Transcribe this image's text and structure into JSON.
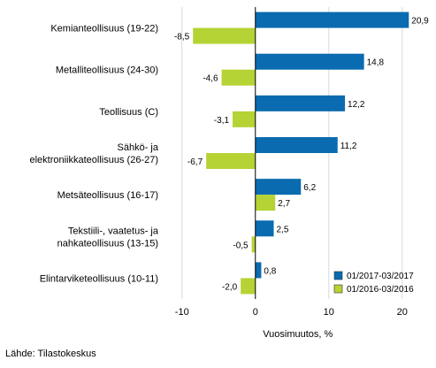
{
  "chart_data": {
    "type": "bar",
    "orientation": "horizontal",
    "categories": [
      [
        "Kemianteollisuus (19-22)"
      ],
      [
        "Metalliteollisuus (24-30)"
      ],
      [
        "Teollisuus (C)"
      ],
      [
        "Sähkö- ja",
        "elektroniikkateollisuus (26-27)"
      ],
      [
        "Metsäteollisuus (16-17)"
      ],
      [
        "Tekstiili-, vaatetus- ja",
        "nahkateollisuus (13-15)"
      ],
      [
        "Elintarviketeollisuus (10-11)"
      ]
    ],
    "series": [
      {
        "name": "01/2017-03/2017",
        "color": "#0a6bb0",
        "values": [
          20.9,
          14.8,
          12.2,
          11.2,
          6.2,
          2.5,
          0.8
        ],
        "labels": [
          "20,9",
          "14,8",
          "12,2",
          "11,2",
          "6,2",
          "2,5",
          "0,8"
        ]
      },
      {
        "name": "01/2016-03/2016",
        "color": "#b5d334",
        "values": [
          -8.5,
          -4.6,
          -3.1,
          -6.7,
          2.7,
          -0.5,
          -2.0
        ],
        "labels": [
          "-8,5",
          "-4,6",
          "-3,1",
          "-6,7",
          "2,7",
          "-0,5",
          "-2,0"
        ]
      }
    ],
    "xlim": [
      -12.5,
      24
    ],
    "xticks": [
      -10,
      0,
      10,
      20
    ],
    "xlabel": "Vuosimuutos, %",
    "grid": true,
    "legend_position": "bottom-right"
  },
  "source_text": "Lähde: Tilastokeskus"
}
